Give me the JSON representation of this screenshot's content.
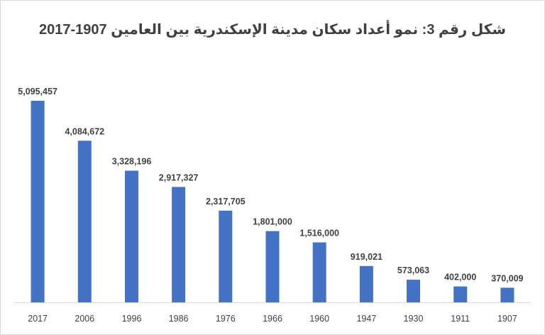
{
  "chart_data": {
    "type": "bar",
    "title": "شكل رقم 3: نمو أعداد سكان مدينة الإسكندرية بين العامين 1907-2017",
    "categories": [
      "2017",
      "2006",
      "1996",
      "1986",
      "1976",
      "1966",
      "1960",
      "1947",
      "1930",
      "1911",
      "1907"
    ],
    "values": [
      5095457,
      4084672,
      3328196,
      2917327,
      2317705,
      1801000,
      1516000,
      919021,
      573063,
      402000,
      370009
    ],
    "value_labels": [
      "5,095,457",
      "4,084,672",
      "3,328,196",
      "2,917,327",
      "2,317,705",
      "1,801,000",
      "1,516,000",
      "919,021",
      "573,063",
      "402,000",
      "370,009"
    ],
    "ylim": [
      0,
      5095457
    ],
    "grid": false,
    "bar_color": "#4472c4",
    "xlabel": "",
    "ylabel": ""
  }
}
